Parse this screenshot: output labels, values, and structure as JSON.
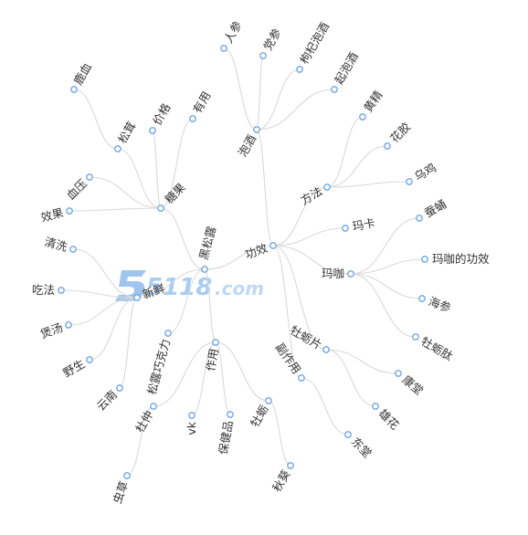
{
  "watermark": {
    "brand": "5118",
    "suffix": ".com",
    "color": "#9cc4f0"
  },
  "colors": {
    "node_stroke": "#6aa3e6",
    "link": "#d9d9d9",
    "text": "#333333"
  },
  "tree": {
    "label": "黑松露",
    "children": [
      {
        "label": "糖果",
        "children": [
          {
            "label": "松茸",
            "children": [
              {
                "label": "鹿血"
              }
            ]
          },
          {
            "label": "价格"
          },
          {
            "label": "有用"
          },
          {
            "label": "血压"
          },
          {
            "label": "效果"
          }
        ]
      },
      {
        "label": "功效",
        "children": [
          {
            "label": "泡酒",
            "children": [
              {
                "label": "人参"
              },
              {
                "label": "党参"
              },
              {
                "label": "枸杞泡酒"
              },
              {
                "label": "起泡酒"
              }
            ]
          },
          {
            "label": "方法",
            "children": [
              {
                "label": "黄精"
              },
              {
                "label": "花胶"
              },
              {
                "label": "乌鸡"
              }
            ]
          },
          {
            "label": "玛卡"
          },
          {
            "label": "玛咖",
            "children": [
              {
                "label": "蚕蛹"
              },
              {
                "label": "玛咖的功效"
              },
              {
                "label": "海参"
              },
              {
                "label": "牡蛎肽"
              }
            ]
          },
          {
            "label": "牡蛎片",
            "children": [
              {
                "label": "康堂"
              },
              {
                "label": "雄花"
              }
            ]
          },
          {
            "label": "副作用",
            "children": [
              {
                "label": "东堂"
              }
            ]
          }
        ]
      },
      {
        "label": "新鲜",
        "children": [
          {
            "label": "清洗"
          },
          {
            "label": "吃法"
          },
          {
            "label": "煲汤"
          },
          {
            "label": "野生"
          },
          {
            "label": "云南"
          }
        ]
      },
      {
        "label": "松露巧克力"
      },
      {
        "label": "作用",
        "children": [
          {
            "label": "杜仲",
            "children": [
              {
                "label": "虫草"
              }
            ]
          },
          {
            "label": "vk"
          },
          {
            "label": "保健品"
          },
          {
            "label": "牡蛎",
            "children": [
              {
                "label": "秋葵"
              }
            ]
          }
        ]
      }
    ]
  }
}
